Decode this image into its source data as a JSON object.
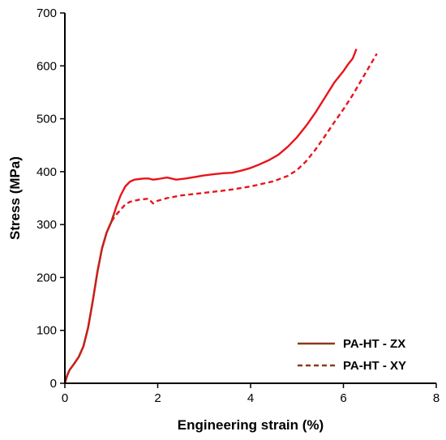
{
  "chart_data": {
    "type": "line",
    "title": "",
    "xlabel": "Engineering strain (%)",
    "ylabel": "Stress (MPa)",
    "xlim": [
      0,
      8
    ],
    "ylim": [
      0,
      700
    ],
    "x_ticks": [
      "0",
      "2",
      "4",
      "6",
      "8"
    ],
    "y_ticks": [
      "0",
      "100",
      "200",
      "300",
      "400",
      "500",
      "600",
      "700"
    ],
    "grid": false,
    "legend_position": "bottom-right",
    "series": [
      {
        "name": "PA-HT - ZX",
        "color": "#e8141c",
        "early_color": "#8b3a1a",
        "style": "solid",
        "x": [
          0,
          0.05,
          0.1,
          0.2,
          0.3,
          0.4,
          0.5,
          0.6,
          0.7,
          0.8,
          0.9,
          1.0,
          1.05,
          1.1,
          1.2,
          1.3,
          1.4,
          1.5,
          1.6,
          1.7,
          1.8,
          1.9,
          2.0,
          2.2,
          2.4,
          2.6,
          2.8,
          3.0,
          3.2,
          3.4,
          3.6,
          3.8,
          4.0,
          4.2,
          4.4,
          4.6,
          4.8,
          5.0,
          5.2,
          5.4,
          5.6,
          5.8,
          6.0,
          6.1,
          6.2,
          6.25,
          6.28
        ],
        "y": [
          0,
          15,
          25,
          37,
          50,
          70,
          105,
          155,
          210,
          255,
          285,
          305,
          318,
          332,
          355,
          372,
          381,
          385,
          386,
          387,
          387,
          385,
          386,
          389,
          385,
          387,
          390,
          393,
          395,
          397,
          398,
          402,
          407,
          414,
          422,
          432,
          447,
          465,
          487,
          512,
          540,
          568,
          590,
          603,
          614,
          625,
          632
        ]
      },
      {
        "name": "PA-HT - XY",
        "color": "#e8141c",
        "early_color": "#8b3a1a",
        "style": "dashed",
        "x": [
          0,
          0.05,
          0.1,
          0.2,
          0.3,
          0.4,
          0.5,
          0.6,
          0.7,
          0.8,
          0.9,
          1.0,
          1.05,
          1.1,
          1.2,
          1.3,
          1.4,
          1.6,
          1.8,
          1.9,
          2.0,
          2.2,
          2.5,
          3.0,
          3.5,
          4.0,
          4.5,
          4.8,
          5.0,
          5.2,
          5.4,
          5.6,
          5.8,
          6.0,
          6.2,
          6.4,
          6.6,
          6.72
        ],
        "y": [
          0,
          15,
          25,
          37,
          50,
          70,
          105,
          155,
          210,
          255,
          285,
          305,
          312,
          318,
          328,
          338,
          343,
          347,
          349,
          340,
          345,
          350,
          355,
          360,
          365,
          372,
          382,
          392,
          403,
          420,
          442,
          467,
          493,
          518,
          545,
          575,
          605,
          623
        ]
      }
    ]
  }
}
